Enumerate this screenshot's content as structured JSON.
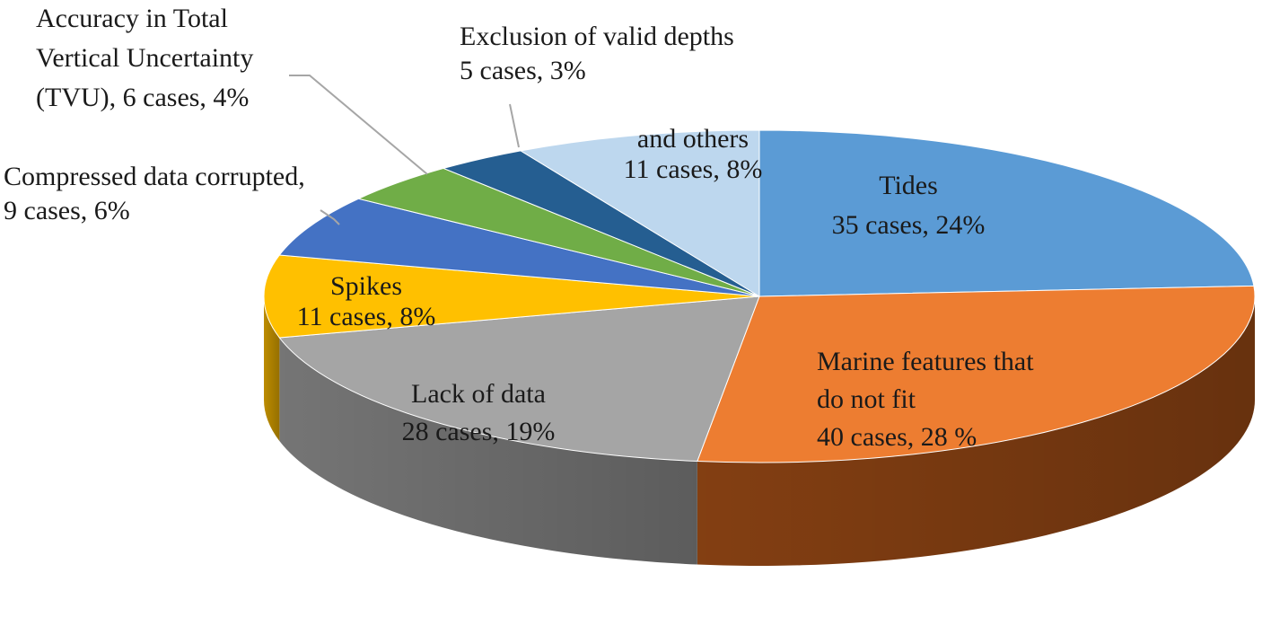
{
  "chart_data": {
    "type": "pie",
    "style": "3d-tilted",
    "slices": [
      {
        "id": "tides",
        "lines": [
          "Tides",
          "35 cases, 24%"
        ],
        "cases": 35,
        "percent": 24,
        "color": "#5b9bd5",
        "side": "#41719c"
      },
      {
        "id": "marine",
        "lines": [
          "Marine features that",
          "do not fit",
          "40 cases, 28 %"
        ],
        "cases": 40,
        "percent": 28,
        "color": "#ed7d31",
        "side": "#8a4213"
      },
      {
        "id": "lack",
        "lines": [
          "Lack of data",
          "28 cases, 19%"
        ],
        "cases": 28,
        "percent": 19,
        "color": "#a5a5a5",
        "side": "#7b7b7b"
      },
      {
        "id": "spikes",
        "lines": [
          "Spikes",
          "11 cases, 8%"
        ],
        "cases": 11,
        "percent": 8,
        "color": "#ffc000",
        "side": "#c79400"
      },
      {
        "id": "compressed",
        "lines": [
          "Compressed data corrupted,",
          "9 cases, 6%"
        ],
        "cases": 9,
        "percent": 6,
        "color": "#4472c4",
        "side": "#2f528f"
      },
      {
        "id": "tvu",
        "lines": [
          "Accuracy in Total",
          "Vertical Uncertainty",
          "(TVU), 6 cases, 4%"
        ],
        "cases": 6,
        "percent": 4,
        "color": "#70ad47",
        "side": "#507e32"
      },
      {
        "id": "exclusion",
        "lines": [
          "Exclusion of valid depths",
          "5 cases, 3%"
        ],
        "cases": 5,
        "percent": 3,
        "color": "#255e91",
        "side": "#1a4368"
      },
      {
        "id": "others",
        "lines": [
          "and others",
          "11 cases, 8%"
        ],
        "cases": 11,
        "percent": 8,
        "color": "#bdd7ee",
        "side": "#9bb8d3"
      }
    ]
  }
}
